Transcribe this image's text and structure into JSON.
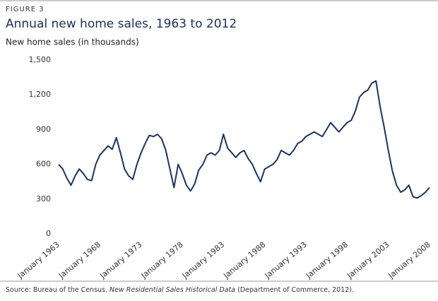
{
  "figure_label": "FIGURE 3",
  "source": {
    "prefix": "Source: Bureau of the Census, ",
    "title": "New Residential Sales Historical Data",
    "suffix": " (Department of Commerce, 2012)."
  },
  "chart_data": {
    "type": "line",
    "title": "Annual new home sales, 1963 to 2012",
    "y_label": "New home sales (in thousands)",
    "x": [
      "January 1963",
      "July 1963",
      "January 1964",
      "July 1964",
      "January 1965",
      "July 1965",
      "January 1966",
      "July 1966",
      "January 1967",
      "July 1967",
      "January 1968",
      "July 1968",
      "January 1969",
      "July 1969",
      "January 1970",
      "July 1970",
      "January 1971",
      "July 1971",
      "January 1972",
      "July 1972",
      "January 1973",
      "July 1973",
      "January 1974",
      "July 1974",
      "January 1975",
      "July 1975",
      "January 1976",
      "July 1976",
      "January 1977",
      "July 1977",
      "January 1978",
      "July 1978",
      "January 1979",
      "July 1979",
      "January 1980",
      "July 1980",
      "January 1981",
      "July 1981",
      "January 1982",
      "July 1982",
      "January 1983",
      "July 1983",
      "January 1984",
      "July 1984",
      "January 1985",
      "July 1985",
      "January 1986",
      "July 1986",
      "January 1987",
      "July 1987",
      "January 1988",
      "July 1988",
      "January 1989",
      "July 1989",
      "January 1990",
      "July 1990",
      "January 1991",
      "July 1991",
      "January 1992",
      "July 1992",
      "January 1993",
      "July 1993",
      "January 1994",
      "July 1994",
      "January 1995",
      "July 1995",
      "January 1996",
      "July 1996",
      "January 1997",
      "July 1997",
      "January 1998",
      "July 1998",
      "January 1999",
      "July 1999",
      "January 2000",
      "July 2000",
      "January 2001",
      "July 2001",
      "January 2002",
      "July 2002",
      "January 2003",
      "July 2003",
      "January 2004",
      "July 2004",
      "January 2005",
      "July 2005",
      "January 2006",
      "July 2006",
      "January 2007",
      "July 2007",
      "January 2008"
    ],
    "series": [
      {
        "name": "New home sales",
        "color": "#1c3461",
        "values": [
          600,
          560,
          480,
          420,
          500,
          560,
          520,
          470,
          460,
          600,
          680,
          720,
          760,
          730,
          830,
          700,
          560,
          500,
          470,
          600,
          700,
          780,
          850,
          840,
          860,
          820,
          720,
          560,
          400,
          600,
          520,
          420,
          370,
          430,
          550,
          600,
          680,
          700,
          680,
          720,
          860,
          740,
          700,
          660,
          700,
          720,
          650,
          600,
          520,
          450,
          560,
          580,
          600,
          640,
          720,
          700,
          680,
          720,
          780,
          800,
          840,
          860,
          880,
          860,
          840,
          900,
          960,
          920,
          880,
          920,
          960,
          980,
          1060,
          1180,
          1220,
          1240,
          1300,
          1320,
          1100,
          920,
          720,
          540,
          420,
          360,
          380,
          420,
          320,
          310,
          330,
          360,
          400
        ]
      }
    ],
    "xticks": [
      "January 1963",
      "January 1968",
      "January 1973",
      "January 1978",
      "January 1983",
      "January 1988",
      "January 1993",
      "January 1998",
      "January 2003",
      "January 2008"
    ],
    "ylim": [
      0,
      1500
    ],
    "yticks": [
      0,
      {
        "value": 300,
        "label": "300"
      },
      {
        "value": 600,
        "label": "600"
      },
      {
        "value": 900,
        "label": "900"
      },
      {
        "value": 1200,
        "label": "1,200"
      },
      {
        "value": 1500,
        "label": "1,500"
      }
    ],
    "grid": false
  }
}
